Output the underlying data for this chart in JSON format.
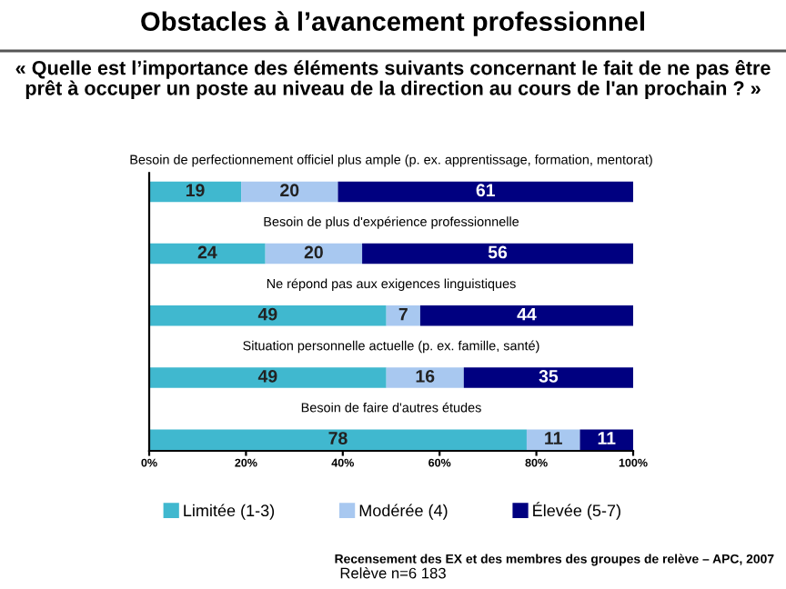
{
  "chart_data": {
    "type": "bar",
    "orientation": "horizontal",
    "stacked": true,
    "title": "Obstacles à l’avancement professionnel",
    "subtitle": "« Quelle est l’importance des éléments suivants concernant le fait de ne pas être prêt à occuper un poste au niveau de la direction au cours de l'an prochain ? »",
    "categories": [
      "Besoin de perfectionnement officiel plus ample (p. ex. apprentissage, formation, mentorat)",
      "Besoin de plus d'expérience professionnelle",
      "Ne répond pas aux exigences linguistiques",
      "Situation personnelle actuelle (p. ex. famille, santé)",
      "Besoin de faire d'autres études"
    ],
    "series": [
      {
        "name": "Limitée (1-3)",
        "color": "#40b8cf",
        "values": [
          19,
          24,
          49,
          49,
          78
        ]
      },
      {
        "name": "Modérée (4)",
        "color": "#a8c8f0",
        "values": [
          20,
          20,
          7,
          16,
          11
        ]
      },
      {
        "name": "Élevée (5-7)",
        "color": "#000080",
        "values": [
          61,
          56,
          44,
          35,
          11
        ]
      }
    ],
    "xlim": [
      0,
      100
    ],
    "xticks": [
      {
        "value": 0,
        "label": "0%"
      },
      {
        "value": 20,
        "label": "20%"
      },
      {
        "value": 40,
        "label": "40%"
      },
      {
        "value": 60,
        "label": "60%"
      },
      {
        "value": 80,
        "label": "80%"
      },
      {
        "value": 100,
        "label": "100%"
      }
    ],
    "data_labels": true,
    "legend": "bottom",
    "grid": false,
    "annotations": [
      "Relève n=6 183",
      "Recensement des EX et des membres des groupes de relève – APC, 2007"
    ]
  }
}
